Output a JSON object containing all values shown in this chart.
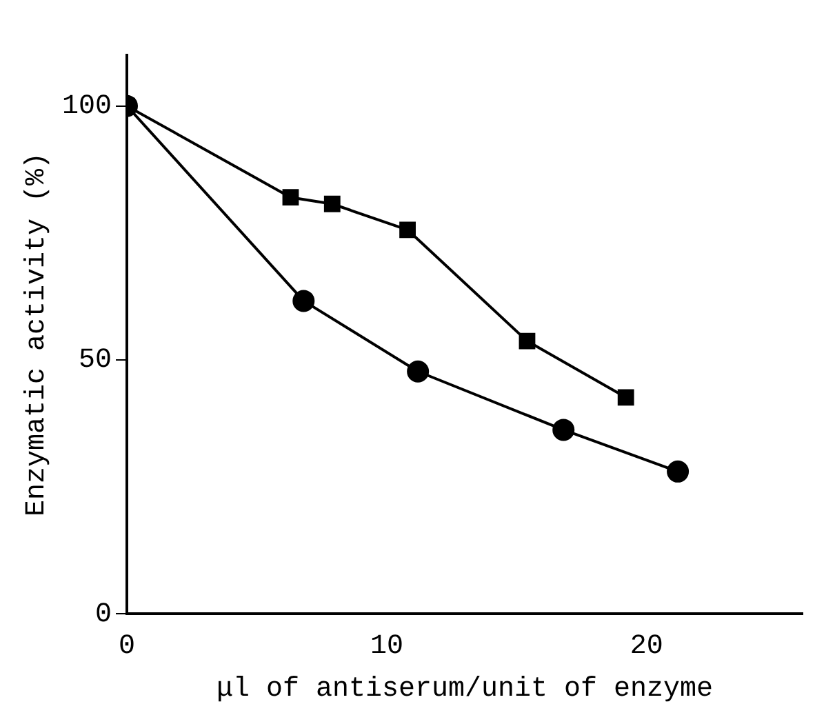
{
  "chart_data": {
    "type": "line",
    "xlabel": "μl of antiserum/unit of enzyme",
    "ylabel": "Enzymatic activity (%)",
    "xlim": [
      0,
      26
    ],
    "xticks": [
      0,
      10,
      20
    ],
    "ylim": [
      0,
      110
    ],
    "yticks": [
      0,
      50,
      100
    ],
    "grid": false,
    "legend": false,
    "series": [
      {
        "color": "#000000",
        "marker": "square",
        "x": [
          0,
          6.3,
          7.9,
          10.8,
          15.4,
          19.2
        ],
        "values": [
          100,
          82,
          80.7,
          75.6,
          53.7,
          42.6
        ]
      },
      {
        "color": "#000000",
        "marker": "circle",
        "x": [
          0,
          6.8,
          11.2,
          16.8,
          21.2
        ],
        "values": [
          100,
          61.6,
          47.7,
          36.2,
          28
        ]
      }
    ]
  }
}
